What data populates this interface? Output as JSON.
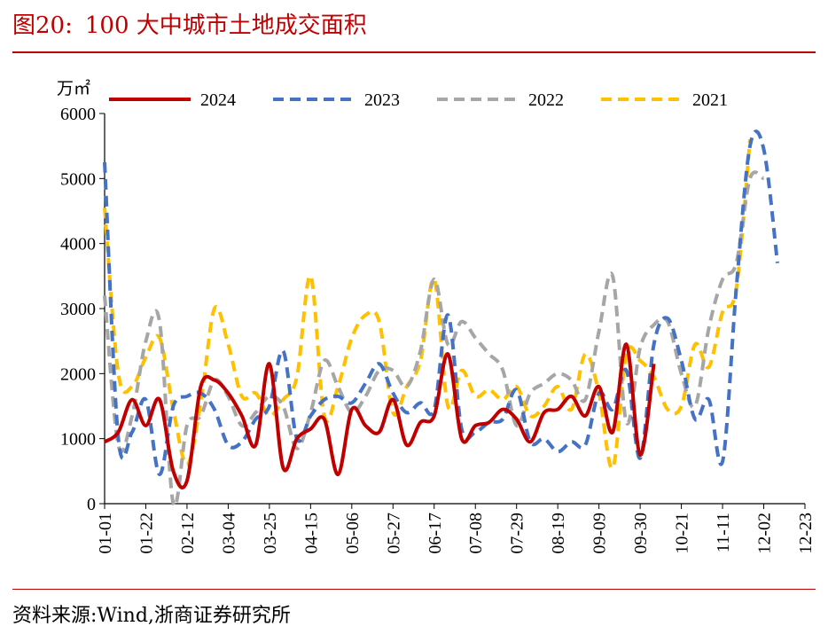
{
  "figure": {
    "label": "图20:",
    "title": "100 大中城市土地成交面积",
    "source": "资料来源:Wind,浙商证券研究所"
  },
  "chart_data": {
    "type": "line",
    "ylabel": "万㎡",
    "ylim": [
      0,
      6000
    ],
    "yticks": [
      0,
      1000,
      2000,
      3000,
      4000,
      5000,
      6000
    ],
    "xlim": [
      0,
      51
    ],
    "x_tick_labels": [
      "01-01",
      "01-22",
      "02-12",
      "03-04",
      "03-25",
      "04-15",
      "05-06",
      "05-27",
      "06-17",
      "07-08",
      "07-29",
      "08-19",
      "09-09",
      "09-30",
      "10-21",
      "11-11",
      "12-02",
      "12-23"
    ],
    "x_tick_step_weeks": 3,
    "legend_position": "top",
    "grid": false,
    "series": [
      {
        "name": "2024",
        "color": "#c00000",
        "dash": "solid",
        "values": [
          950,
          1100,
          1600,
          1200,
          1600,
          500,
          350,
          1800,
          1900,
          1700,
          1350,
          900,
          2150,
          550,
          1000,
          1150,
          1300,
          450,
          1450,
          1200,
          1100,
          1600,
          900,
          1250,
          1350,
          2300,
          1000,
          1200,
          1250,
          1450,
          1300,
          950,
          1400,
          1450,
          1650,
          1350,
          1800,
          1100,
          2450,
          750,
          2150
        ]
      },
      {
        "name": "2023",
        "color": "#4472c4",
        "dash": "dash",
        "values": [
          5250,
          1000,
          1100,
          1600,
          450,
          1500,
          1650,
          1700,
          1450,
          900,
          950,
          1300,
          1500,
          2350,
          1000,
          1350,
          1600,
          1650,
          1550,
          1850,
          2150,
          1700,
          1400,
          1550,
          1450,
          2900,
          1150,
          1100,
          1250,
          1300,
          1750,
          950,
          1000,
          800,
          950,
          900,
          1700,
          1450,
          2050,
          700,
          2450,
          2850,
          2200,
          1300,
          1600,
          650,
          3300,
          5500,
          5450,
          3700
        ]
      },
      {
        "name": "2022",
        "color": "#a6a6a6",
        "dash": "dash",
        "values": [
          3200,
          900,
          1350,
          2500,
          2800,
          0,
          1200,
          1350,
          1900,
          1650,
          1200,
          1400,
          1650,
          1500,
          850,
          1400,
          2200,
          1800,
          1400,
          1650,
          2050,
          2050,
          1800,
          2350,
          3450,
          2450,
          2800,
          2550,
          2300,
          2050,
          1200,
          1700,
          1850,
          2000,
          1900,
          1600,
          2650,
          3500,
          1250,
          2400,
          2750,
          2800,
          2000,
          1500,
          2700,
          3450,
          3700,
          5000,
          5000
        ]
      },
      {
        "name": "2021",
        "color": "#ffc000",
        "dash": "dash",
        "values": [
          4550,
          2000,
          1800,
          2250,
          2550,
          1450,
          600,
          1550,
          3000,
          2450,
          1650,
          1700,
          1350,
          1600,
          1950,
          3500,
          1350,
          1800,
          2550,
          2900,
          2800,
          1400,
          1800,
          2200,
          3450,
          1500,
          2050,
          1650,
          1750,
          1600,
          1800,
          1350,
          1500,
          1800,
          1450,
          2300,
          1700,
          550,
          2300,
          2200,
          1950,
          1450,
          1500,
          2450,
          2100,
          2950,
          3300,
          5600
        ]
      }
    ]
  }
}
